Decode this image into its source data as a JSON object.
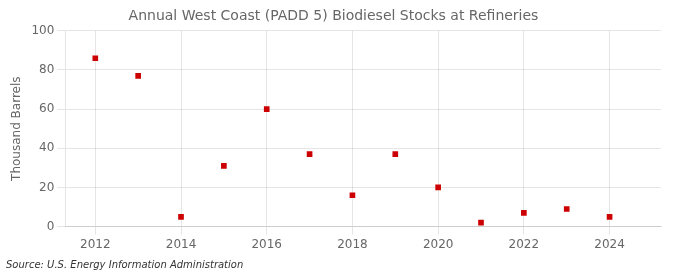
{
  "chart_data": {
    "type": "scatter",
    "title": "Annual West Coast (PADD 5) Biodiesel Stocks at Refineries",
    "ylabel": "Thousand Barrels",
    "annotations": [
      "Source: U.S. Energy Information Administration"
    ],
    "x": [
      2012,
      2013,
      2014,
      2015,
      2016,
      2017,
      2018,
      2019,
      2020,
      2021,
      2022,
      2023,
      2024
    ],
    "values": [
      86,
      77,
      5,
      31,
      60,
      37,
      16,
      37,
      20,
      2,
      7,
      9,
      5
    ],
    "color": "#cc0000",
    "marker": "square",
    "xlim": [
      2011.3,
      2025.2
    ],
    "ylim": [
      0,
      100
    ],
    "xticks": [
      2012,
      2014,
      2016,
      2018,
      2020,
      2022,
      2024
    ],
    "yticks": [
      0,
      20,
      40,
      60,
      80,
      100
    ],
    "grid": true
  }
}
